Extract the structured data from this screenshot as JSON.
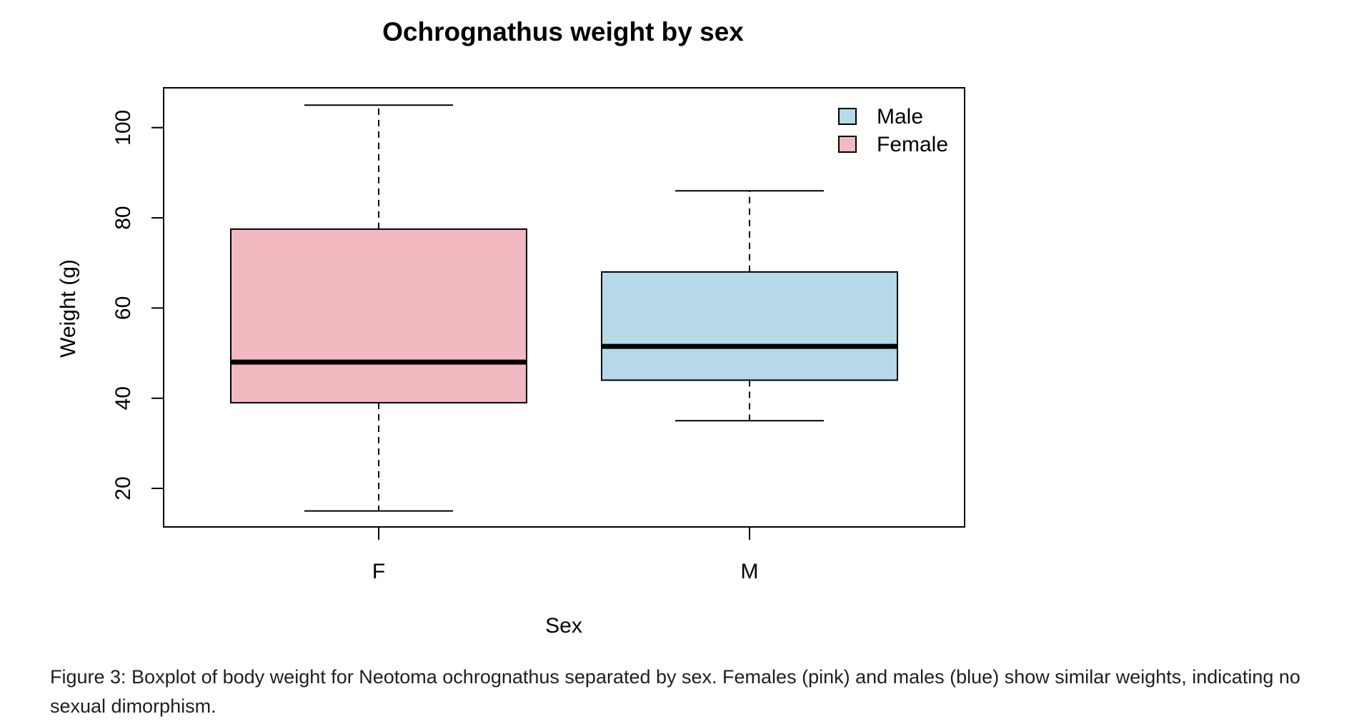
{
  "chart_data": {
    "type": "boxplot",
    "title": "Ochrognathus weight by sex",
    "xlabel": "Sex",
    "ylabel": "Weight (g)",
    "categories": [
      "F",
      "M"
    ],
    "ylim": [
      11.3,
      108.7
    ],
    "yticks": [
      20,
      40,
      60,
      80,
      100
    ],
    "grid": false,
    "legend": {
      "placement": "top-right",
      "entries": [
        {
          "label": "Male",
          "color": "#b7d9e8"
        },
        {
          "label": "Female",
          "color": "#f2b9c1"
        }
      ]
    },
    "boxes": [
      {
        "category": "F",
        "min": 15,
        "q1": 39,
        "median": 48,
        "q3": 77.5,
        "max": 105,
        "color": "#f2b9c1"
      },
      {
        "category": "M",
        "min": 35,
        "q1": 44,
        "median": 51.5,
        "q3": 68,
        "max": 86,
        "color": "#b7d9e8"
      }
    ]
  },
  "caption": "Figure 3: Boxplot of body weight for Neotoma ochrognathus separated by sex. Females (pink) and males (blue) show similar weights, indicating no sexual dimorphism."
}
